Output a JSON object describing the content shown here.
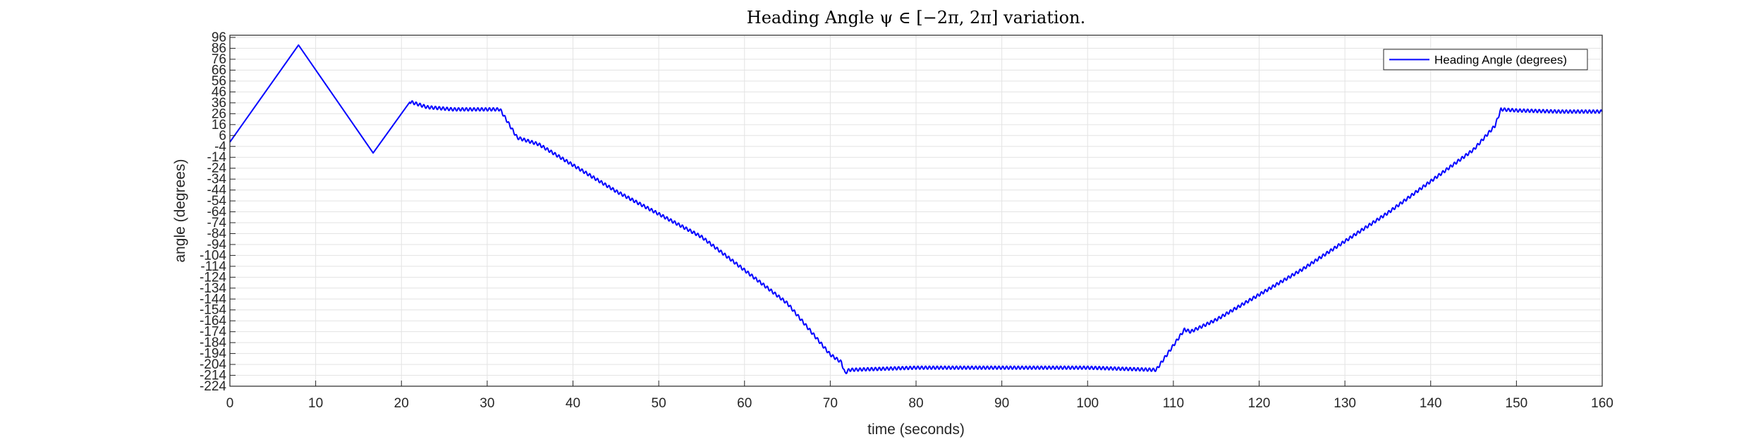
{
  "chart_data": {
    "type": "line",
    "title": "Heading Angle ψ ∈ [−2π, 2π] variation.",
    "xlabel": "time (seconds)",
    "ylabel": "angle (degrees)",
    "xlim": [
      0,
      160
    ],
    "ylim": [
      -224,
      98
    ],
    "xticks": [
      0,
      10,
      20,
      30,
      40,
      50,
      60,
      70,
      80,
      90,
      100,
      110,
      120,
      130,
      140,
      150,
      160
    ],
    "yticks": [
      96,
      86,
      76,
      66,
      56,
      46,
      36,
      26,
      16,
      6,
      -4,
      -14,
      -24,
      -34,
      -44,
      -54,
      -64,
      -74,
      -84,
      -94,
      -104,
      -114,
      -124,
      -134,
      -144,
      -154,
      -164,
      -174,
      -184,
      -194,
      -204,
      -214,
      -224
    ],
    "grid": true,
    "legend_position": "top-right",
    "series": [
      {
        "name": "Heading Angle (degrees)",
        "color": "#0000ff",
        "x": [
          0,
          8,
          16.7,
          21,
          23,
          26,
          29,
          31.5,
          33.5,
          36,
          45,
          55,
          65,
          70,
          71.3,
          71.7,
          72.2,
          80,
          90,
          100,
          108,
          111.3,
          112,
          115,
          125,
          135,
          145,
          147.5,
          148.2,
          150,
          155,
          160
        ],
        "y": [
          0,
          89,
          -10,
          37,
          32,
          30,
          30,
          30,
          4,
          -2,
          -45,
          -87,
          -148,
          -195,
          -202,
          -212,
          -209,
          -207,
          -207,
          -207,
          -209,
          -172,
          -174,
          -163,
          -117,
          -65,
          -7,
          15,
          30,
          29,
          28,
          28
        ],
        "oscillation": {
          "from": 21,
          "to": 160,
          "amplitude": 1.4,
          "period": 0.45
        }
      }
    ]
  }
}
